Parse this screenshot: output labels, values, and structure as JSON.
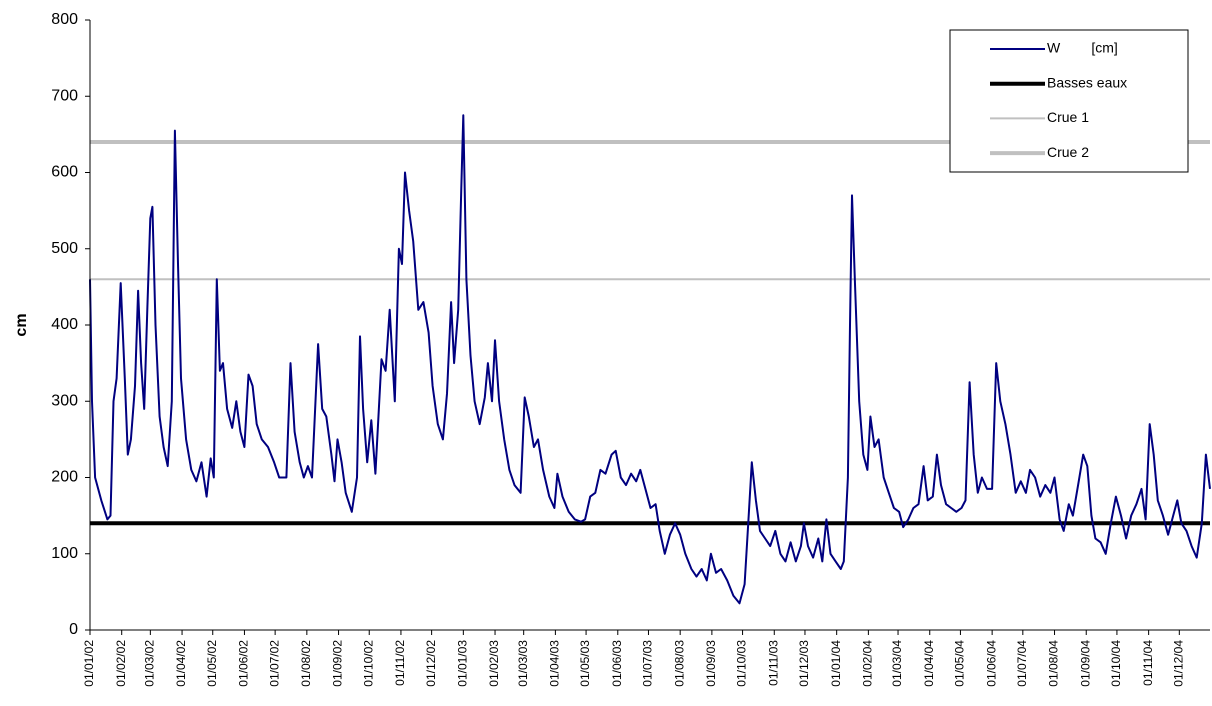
{
  "chart_data": {
    "type": "line",
    "y_label": "cm",
    "ylim": [
      0,
      800
    ],
    "yticks": [
      0,
      100,
      200,
      300,
      400,
      500,
      600,
      700,
      800
    ],
    "xlim": [
      "01/01/02",
      "31/12/04"
    ],
    "xticks": [
      "01/01/02",
      "01/02/02",
      "01/03/02",
      "01/04/02",
      "01/05/02",
      "01/06/02",
      "01/07/02",
      "01/08/02",
      "01/09/02",
      "01/10/02",
      "01/11/02",
      "01/12/02",
      "01/01/03",
      "01/02/03",
      "01/03/03",
      "01/04/03",
      "01/05/03",
      "01/06/03",
      "01/07/03",
      "01/08/03",
      "01/09/03",
      "01/10/03",
      "01/11/03",
      "01/12/03",
      "01/01/04",
      "01/02/04",
      "01/03/04",
      "01/04/04",
      "01/05/04",
      "01/06/04",
      "01/07/04",
      "01/08/04",
      "01/09/04",
      "01/10/04",
      "01/11/04",
      "01/12/04"
    ],
    "x": [
      "01/01/02",
      "03/01/02",
      "06/01/02",
      "12/01/02",
      "18/01/02",
      "21/01/02",
      "24/01/02",
      "27/01/02",
      "31/01/02",
      "04/02/02",
      "07/02/02",
      "10/02/02",
      "14/02/02",
      "17/02/02",
      "20/02/02",
      "23/02/02",
      "26/02/02",
      "01/03/02",
      "03/03/02",
      "06/03/02",
      "10/03/02",
      "14/03/02",
      "18/03/02",
      "22/03/02",
      "25/03/02",
      "28/03/02",
      "31/03/02",
      "05/04/02",
      "10/04/02",
      "15/04/02",
      "20/04/02",
      "25/04/02",
      "29/04/02",
      "02/05/02",
      "05/05/02",
      "08/05/02",
      "11/05/02",
      "15/05/02",
      "20/05/02",
      "24/05/02",
      "28/05/02",
      "01/06/02",
      "05/06/02",
      "09/06/02",
      "13/06/02",
      "18/06/02",
      "24/06/02",
      "30/06/02",
      "05/07/02",
      "12/07/02",
      "16/07/02",
      "20/07/02",
      "25/07/02",
      "29/07/02",
      "02/08/02",
      "06/08/02",
      "12/08/02",
      "16/08/02",
      "20/08/02",
      "25/08/02",
      "28/08/02",
      "31/08/02",
      "04/09/02",
      "08/09/02",
      "14/09/02",
      "19/09/02",
      "22/09/02",
      "25/09/02",
      "29/09/02",
      "03/10/02",
      "07/10/02",
      "13/10/02",
      "17/10/02",
      "21/10/02",
      "26/10/02",
      "30/10/02",
      "02/11/02",
      "05/11/02",
      "09/11/02",
      "13/11/02",
      "18/11/02",
      "23/11/02",
      "28/11/02",
      "02/12/02",
      "07/12/02",
      "12/12/02",
      "16/12/02",
      "20/12/02",
      "23/12/02",
      "27/12/02",
      "30/12/02",
      "01/01/03",
      "04/01/03",
      "08/01/03",
      "12/01/03",
      "17/01/03",
      "22/01/03",
      "25/01/03",
      "29/01/03",
      "01/02/03",
      "05/02/03",
      "10/02/03",
      "15/02/03",
      "20/02/03",
      "26/02/03",
      "02/03/03",
      "06/03/03",
      "11/03/03",
      "15/03/03",
      "20/03/03",
      "26/03/03",
      "31/03/03",
      "03/04/03",
      "08/04/03",
      "14/04/03",
      "20/04/03",
      "26/04/03",
      "30/04/03",
      "05/05/03",
      "10/05/03",
      "15/05/03",
      "20/05/03",
      "26/05/03",
      "30/05/03",
      "04/06/03",
      "09/06/03",
      "14/06/03",
      "19/06/03",
      "23/06/03",
      "28/06/03",
      "03/07/03",
      "08/07/03",
      "12/07/03",
      "17/07/03",
      "22/07/03",
      "27/07/03",
      "01/08/03",
      "06/08/03",
      "12/08/03",
      "17/08/03",
      "22/08/03",
      "27/08/03",
      "31/08/03",
      "05/09/03",
      "10/09/03",
      "16/09/03",
      "22/09/03",
      "28/09/03",
      "03/10/03",
      "07/10/03",
      "10/10/03",
      "14/10/03",
      "18/10/03",
      "23/10/03",
      "28/10/03",
      "02/11/03",
      "07/11/03",
      "12/11/03",
      "17/11/03",
      "22/11/03",
      "27/11/03",
      "30/11/03",
      "04/12/03",
      "09/12/03",
      "14/12/03",
      "18/12/03",
      "22/12/03",
      "26/12/03",
      "31/12/03",
      "05/01/04",
      "08/01/04",
      "12/01/04",
      "14/01/04",
      "16/01/04",
      "19/01/04",
      "23/01/04",
      "27/01/04",
      "31/01/04",
      "03/02/04",
      "07/02/04",
      "11/02/04",
      "16/02/04",
      "21/02/04",
      "26/02/04",
      "02/03/04",
      "06/03/04",
      "11/03/04",
      "16/03/04",
      "21/03/04",
      "26/03/04",
      "30/03/04",
      "04/04/04",
      "08/04/04",
      "12/04/04",
      "17/04/04",
      "22/04/04",
      "27/04/04",
      "02/05/04",
      "06/05/04",
      "10/05/04",
      "14/05/04",
      "18/05/04",
      "22/05/04",
      "27/05/04",
      "01/06/04",
      "05/06/04",
      "09/06/04",
      "14/06/04",
      "19/06/04",
      "24/06/04",
      "29/06/04",
      "04/07/04",
      "08/07/04",
      "13/07/04",
      "18/07/04",
      "23/07/04",
      "28/07/04",
      "01/08/04",
      "06/08/04",
      "10/08/04",
      "15/08/04",
      "19/08/04",
      "24/08/04",
      "29/08/04",
      "02/09/04",
      "06/09/04",
      "10/09/04",
      "15/09/04",
      "20/09/04",
      "25/09/04",
      "30/09/04",
      "05/10/04",
      "10/10/04",
      "15/10/04",
      "20/10/04",
      "25/10/04",
      "29/10/04",
      "02/11/04",
      "06/11/04",
      "10/11/04",
      "15/11/04",
      "20/11/04",
      "25/11/04",
      "29/11/04",
      "03/12/04",
      "08/12/04",
      "13/12/04",
      "18/12/04",
      "23/12/04",
      "27/12/04",
      "31/12/04"
    ],
    "series": [
      {
        "name": "W        [cm]",
        "color": "#000080",
        "values": [
          460,
          300,
          200,
          170,
          145,
          150,
          300,
          330,
          455,
          330,
          230,
          250,
          320,
          445,
          350,
          290,
          420,
          540,
          555,
          400,
          280,
          240,
          215,
          300,
          655,
          480,
          330,
          250,
          210,
          195,
          220,
          175,
          225,
          200,
          460,
          340,
          350,
          290,
          265,
          300,
          260,
          240,
          335,
          320,
          270,
          250,
          240,
          220,
          200,
          200,
          350,
          260,
          220,
          200,
          215,
          200,
          375,
          290,
          280,
          230,
          195,
          250,
          220,
          180,
          155,
          200,
          385,
          290,
          220,
          275,
          205,
          355,
          340,
          420,
          300,
          500,
          480,
          600,
          550,
          510,
          420,
          430,
          390,
          320,
          270,
          250,
          310,
          430,
          350,
          420,
          580,
          675,
          460,
          360,
          300,
          270,
          305,
          350,
          300,
          380,
          300,
          250,
          210,
          190,
          180,
          305,
          280,
          240,
          250,
          210,
          175,
          160,
          205,
          175,
          155,
          145,
          142,
          145,
          175,
          180,
          210,
          205,
          230,
          235,
          200,
          190,
          205,
          195,
          210,
          185,
          160,
          165,
          130,
          100,
          125,
          140,
          125,
          100,
          80,
          70,
          80,
          65,
          100,
          75,
          80,
          65,
          45,
          35,
          60,
          150,
          220,
          170,
          130,
          120,
          110,
          130,
          100,
          90,
          115,
          90,
          110,
          140,
          110,
          95,
          120,
          90,
          145,
          100,
          90,
          80,
          90,
          200,
          400,
          570,
          450,
          300,
          230,
          210,
          280,
          240,
          250,
          200,
          180,
          160,
          155,
          135,
          145,
          160,
          165,
          215,
          170,
          175,
          230,
          190,
          165,
          160,
          155,
          160,
          170,
          325,
          230,
          180,
          200,
          185,
          185,
          350,
          300,
          270,
          230,
          180,
          195,
          180,
          210,
          200,
          175,
          190,
          180,
          200,
          145,
          130,
          165,
          150,
          190,
          230,
          215,
          150,
          120,
          115,
          100,
          140,
          175,
          150,
          120,
          150,
          165,
          185,
          145,
          270,
          230,
          170,
          150,
          125,
          150,
          170,
          140,
          130,
          110,
          95,
          140,
          230,
          185
        ]
      }
    ],
    "reference_lines": [
      {
        "name": "Basses eaux",
        "color": "#000000",
        "value": 140
      },
      {
        "name": "Crue 1",
        "color": "#c0c0c0",
        "value": 460
      },
      {
        "name": "Crue 2",
        "color": "#c0c0c0",
        "value": 640
      }
    ]
  }
}
